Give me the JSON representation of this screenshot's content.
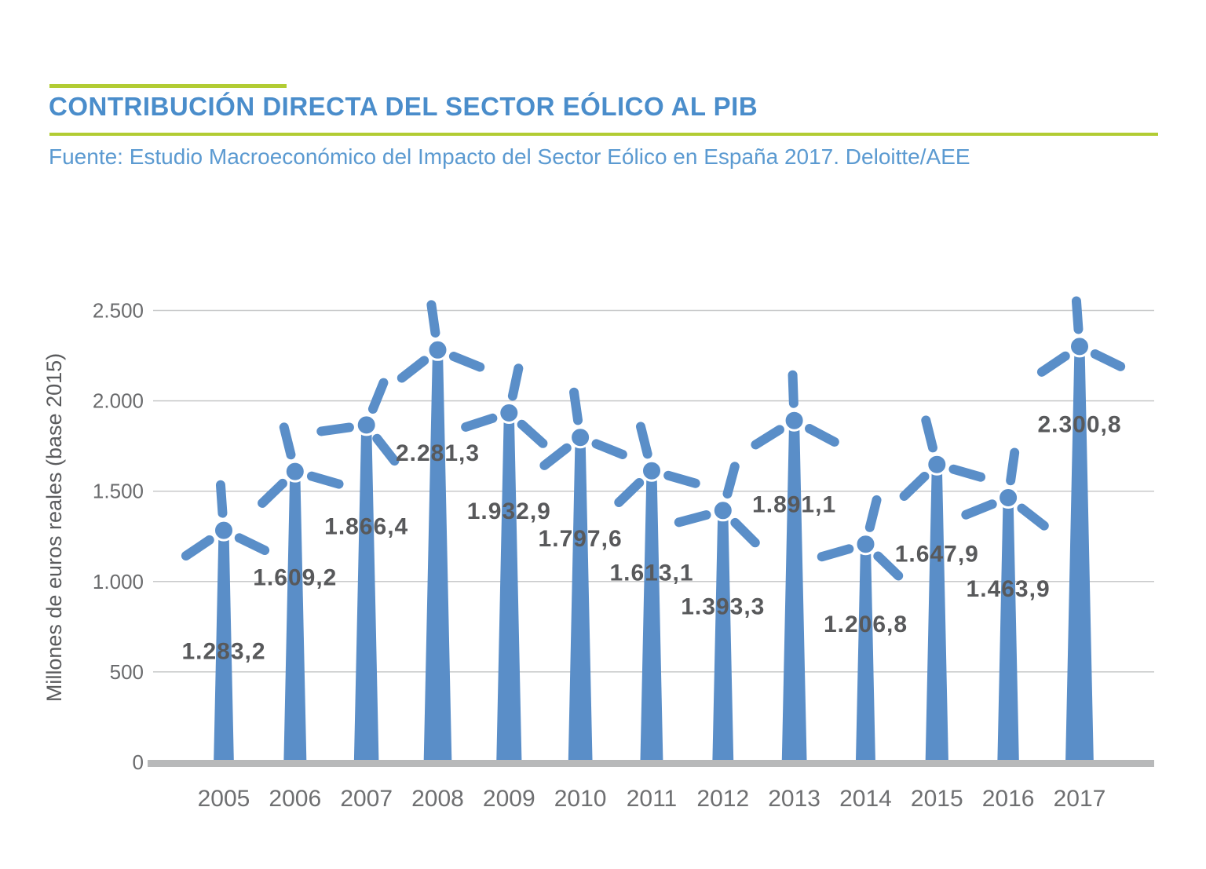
{
  "header": {
    "title": "CONTRIBUCIÓN DIRECTA DEL SECTOR EÓLICO AL PIB",
    "source": "Fuente: Estudio Macroeconómico del Impacto del Sector Eólico en España 2017. Deloitte/AEE"
  },
  "colors": {
    "accent_green": "#b2cc33",
    "title_blue": "#4a8dcb",
    "source_blue": "#5b9ad1",
    "turbine_blue": "#5a8ec8",
    "gridline": "#c8c9ca",
    "baseline": "#b8b9ba",
    "value_label_gray": "#58595b",
    "axis_text_gray": "#6a6b6d"
  },
  "chart_data": {
    "type": "bar",
    "bar_style": "wind-turbine-pictogram",
    "title": "CONTRIBUCIÓN DIRECTA DEL SECTOR EÓLICO AL PIB",
    "source": "Fuente: Estudio Macroeconómico del Impacto del Sector Eólico en España 2017. Deloitte/AEE",
    "xlabel": "",
    "ylabel": "Millones de euros reales (base 2015)",
    "categories": [
      "2005",
      "2006",
      "2007",
      "2008",
      "2009",
      "2010",
      "2011",
      "2012",
      "2013",
      "2014",
      "2015",
      "2016",
      "2017"
    ],
    "values": [
      1283.2,
      1609.2,
      1866.4,
      2281.3,
      1932.9,
      1797.6,
      1613.1,
      1393.3,
      1891.1,
      1206.8,
      1647.9,
      1463.9,
      2300.8
    ],
    "value_labels": [
      "1.283,2",
      "1.609,2",
      "1.866,4",
      "2.281,3",
      "1.932,9",
      "1.797,6",
      "1.613,1",
      "1.393,3",
      "1.891,1",
      "1.206,8",
      "1.647,9",
      "1.463,9",
      "2.300,8"
    ],
    "ylim": [
      0,
      2500
    ],
    "yticks": [
      0,
      500,
      1000,
      1500,
      2000,
      2500
    ],
    "ytick_labels": [
      "0",
      "500",
      "1.000",
      "1.500",
      "2.000",
      "2.500"
    ],
    "grid": true,
    "legend": false,
    "blade_rotations_deg": [
      -4,
      -14,
      22,
      -8,
      12,
      -8,
      -14,
      15,
      -2,
      14,
      -14,
      8,
      -4
    ]
  }
}
